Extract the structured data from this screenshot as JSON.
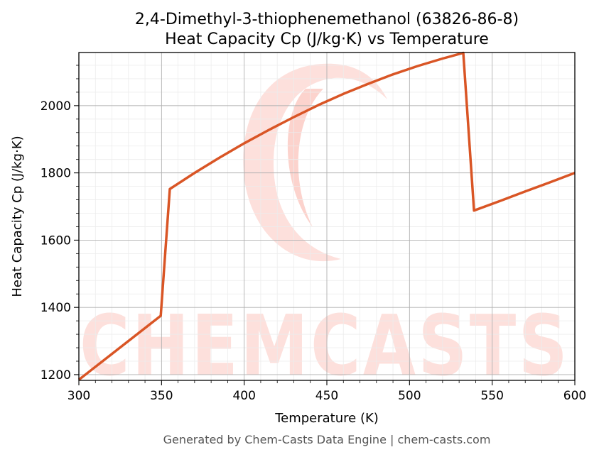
{
  "chart_data": {
    "type": "line",
    "title": "2,4-Dimethyl-3-thiophenemethanol (63826-86-8)",
    "subtitle": "Heat Capacity Cp (J/kg·K) vs Temperature",
    "xlabel": "Temperature (K)",
    "ylabel": "Heat Capacity Cp (J/kg·K)",
    "xlim": [
      300,
      600
    ],
    "ylim": [
      1183,
      2158
    ],
    "xticks": [
      300,
      350,
      400,
      450,
      500,
      550,
      600
    ],
    "yticks": [
      1200,
      1400,
      1600,
      1800,
      2000
    ],
    "grid": true,
    "legend": "none",
    "series": [
      {
        "color": "#d95525",
        "x": [
          300,
          349.5,
          355,
          370,
          385,
          400,
          415,
          430,
          445,
          460,
          475,
          490,
          505,
          520,
          532.5,
          539,
          555,
          570,
          585,
          600
        ],
        "y": [
          1185,
          1375,
          1752,
          1800,
          1845,
          1888,
          1928,
          1966,
          2002,
          2035,
          2065,
          2093,
          2118,
          2140,
          2157,
          1688,
          1717,
          1745,
          1772,
          1800
        ]
      }
    ]
  },
  "watermark": {
    "text": "CHEMCASTS",
    "color": "#fde0dc"
  },
  "footer": "Generated by Chem-Casts Data Engine | chem-casts.com"
}
